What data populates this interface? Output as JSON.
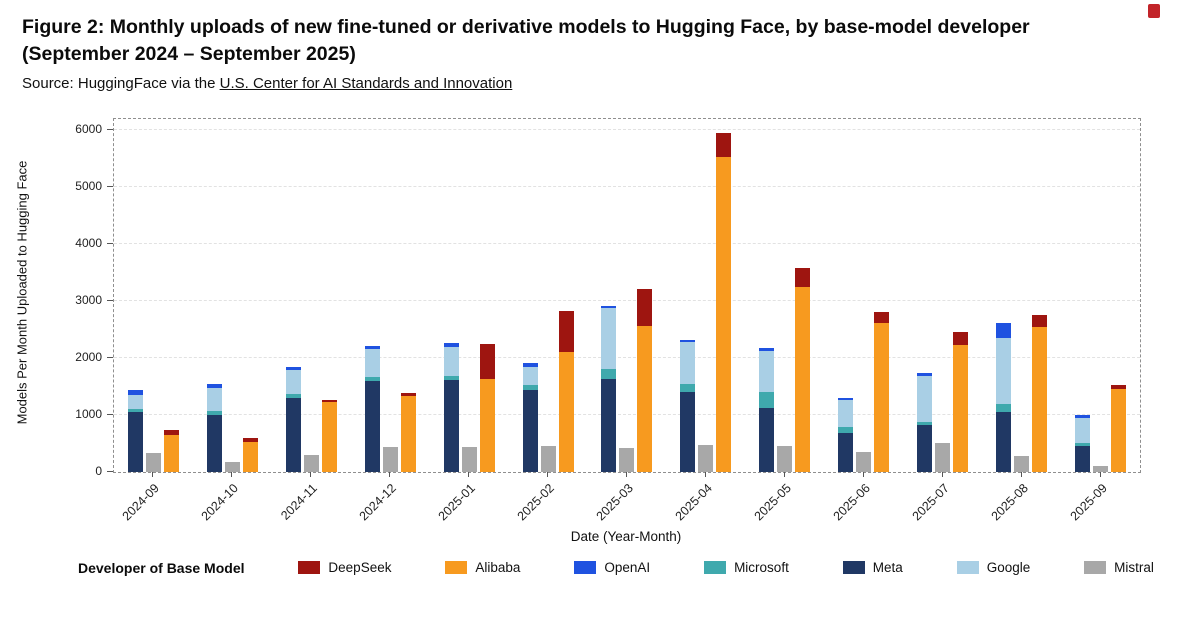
{
  "figure": {
    "title_line1": "Figure 2: Monthly uploads of new fine-tuned or derivative models to Hugging Face, by base-model developer",
    "title_line2": "(September 2024 – September 2025)",
    "source_prefix": "Source: HuggingFace via the ",
    "source_link": "U.S. Center for AI Standards and Innovation"
  },
  "chart_data": {
    "type": "bar",
    "title": "",
    "xlabel": "Date (Year-Month)",
    "ylabel": "Models Per Month Uploaded to Hugging Face",
    "ylim": [
      0,
      6200
    ],
    "yticks": [
      0,
      1000,
      2000,
      3000,
      4000,
      5000,
      6000
    ],
    "grid": "dashed-horizontal",
    "categories": [
      "2024-09",
      "2024-10",
      "2024-11",
      "2024-12",
      "2025-01",
      "2025-02",
      "2025-03",
      "2025-04",
      "2025-05",
      "2025-06",
      "2025-07",
      "2025-08",
      "2025-09"
    ],
    "bar_groups": {
      "description": "Each month has three bars: a left stack (Meta+Microsoft+Google+OpenAI), a middle Mistral bar, and a right stack (Alibaba+DeepSeek)",
      "stack_left_order": [
        "Meta",
        "Microsoft",
        "Google",
        "OpenAI"
      ],
      "middle": "Mistral",
      "stack_right_order": [
        "Alibaba",
        "DeepSeek"
      ]
    },
    "series": [
      {
        "name": "Meta",
        "color": "#203864",
        "values": [
          1050,
          1000,
          1300,
          1600,
          1620,
          1430,
          1630,
          1400,
          1120,
          680,
          820,
          1050,
          450
        ]
      },
      {
        "name": "Microsoft",
        "color": "#3fa9ad",
        "values": [
          60,
          60,
          70,
          60,
          60,
          90,
          180,
          140,
          290,
          100,
          60,
          150,
          50
        ]
      },
      {
        "name": "Google",
        "color": "#a9cfe5",
        "values": [
          240,
          410,
          410,
          490,
          520,
          330,
          1060,
          740,
          720,
          480,
          810,
          1150,
          450
        ]
      },
      {
        "name": "OpenAI",
        "color": "#1f52e0",
        "values": [
          80,
          70,
          60,
          60,
          60,
          60,
          50,
          40,
          50,
          40,
          40,
          270,
          40
        ]
      },
      {
        "name": "Mistral",
        "color": "#a8a8a8",
        "values": [
          330,
          170,
          290,
          430,
          440,
          450,
          420,
          470,
          450,
          340,
          510,
          270,
          110
        ]
      },
      {
        "name": "Alibaba",
        "color": "#f79a1f",
        "values": [
          640,
          520,
          1230,
          1340,
          1630,
          2110,
          2560,
          5530,
          3240,
          2620,
          2230,
          2550,
          1450
        ]
      },
      {
        "name": "DeepSeek",
        "color": "#9e1510",
        "values": [
          90,
          80,
          30,
          40,
          620,
          720,
          650,
          420,
          340,
          190,
          220,
          200,
          80
        ]
      }
    ],
    "legend": {
      "label": "Developer of Base Model",
      "position": "bottom",
      "entries": [
        "DeepSeek",
        "Alibaba",
        "OpenAI",
        "Microsoft",
        "Meta",
        "Google",
        "Mistral"
      ]
    }
  }
}
